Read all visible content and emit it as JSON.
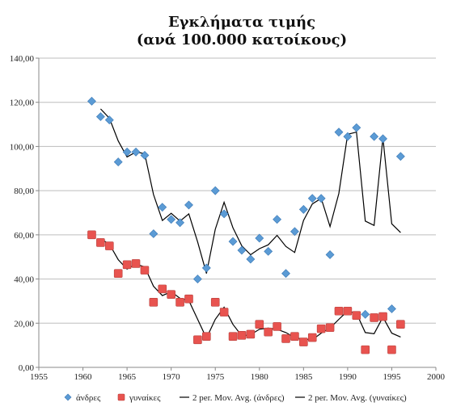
{
  "chart_data": {
    "type": "scatter",
    "title": [
      "Εγκλήματα τιμής",
      "(ανά 100.000 κατοίκους)"
    ],
    "xlabel": "",
    "ylabel": "",
    "xlim": [
      1955,
      2000
    ],
    "ylim": [
      0,
      140
    ],
    "x_ticks": [
      "1955",
      "1960",
      "1965",
      "1970",
      "1975",
      "1980",
      "1985",
      "1990",
      "1995",
      "2000"
    ],
    "y_ticks": [
      "0,00",
      "20,00",
      "40,00",
      "60,00",
      "80,00",
      "100,00",
      "120,00",
      "140,00"
    ],
    "grid": "horizontal",
    "legend_position": "bottom",
    "colors": {
      "men": "#5b9bd5",
      "women": "#e8534f",
      "trend": "#000000",
      "grid": "#bdbdbd",
      "axis": "#888888"
    },
    "series": [
      {
        "name": "άνδρες",
        "marker": "diamond",
        "x": [
          1961,
          1962,
          1963,
          1964,
          1965,
          1966,
          1967,
          1968,
          1969,
          1970,
          1971,
          1972,
          1973,
          1974,
          1975,
          1976,
          1977,
          1978,
          1979,
          1980,
          1981,
          1982,
          1983,
          1984,
          1985,
          1986,
          1987,
          1988,
          1989,
          1990,
          1991,
          1992,
          1993,
          1994,
          1995,
          1996
        ],
        "y": [
          120.5,
          113.5,
          112,
          93,
          97.5,
          97.5,
          96,
          60.5,
          72.5,
          67,
          65.5,
          73.5,
          40,
          45,
          80,
          69.5,
          57,
          53,
          49,
          58.5,
          52.5,
          67,
          42.5,
          61.5,
          71.5,
          76.5,
          76.5,
          51,
          106.5,
          104.5,
          108.5,
          24,
          104.5,
          103.5,
          26.5,
          95.5
        ]
      },
      {
        "name": "γυναίκες",
        "marker": "square",
        "x": [
          1961,
          1962,
          1963,
          1964,
          1965,
          1966,
          1967,
          1968,
          1969,
          1970,
          1971,
          1972,
          1973,
          1974,
          1975,
          1976,
          1977,
          1978,
          1979,
          1980,
          1981,
          1982,
          1983,
          1984,
          1985,
          1986,
          1987,
          1988,
          1989,
          1990,
          1991,
          1992,
          1993,
          1994,
          1995,
          1996
        ],
        "y": [
          60,
          56.5,
          55,
          42.5,
          46.5,
          47,
          44,
          29.5,
          35.5,
          33,
          29.5,
          31,
          12.5,
          14,
          29.5,
          25,
          14,
          14.5,
          15,
          19.5,
          16,
          18.5,
          13,
          14,
          11.5,
          13.5,
          17.5,
          18,
          25.5,
          25.5,
          23.5,
          8,
          22.5,
          23,
          8,
          19.5
        ]
      },
      {
        "name": "2 per. Mov. Avg. (άνδρες)",
        "marker": "line"
      },
      {
        "name": "2 per. Mov. Avg. (γυναίκες)",
        "marker": "line"
      }
    ]
  }
}
